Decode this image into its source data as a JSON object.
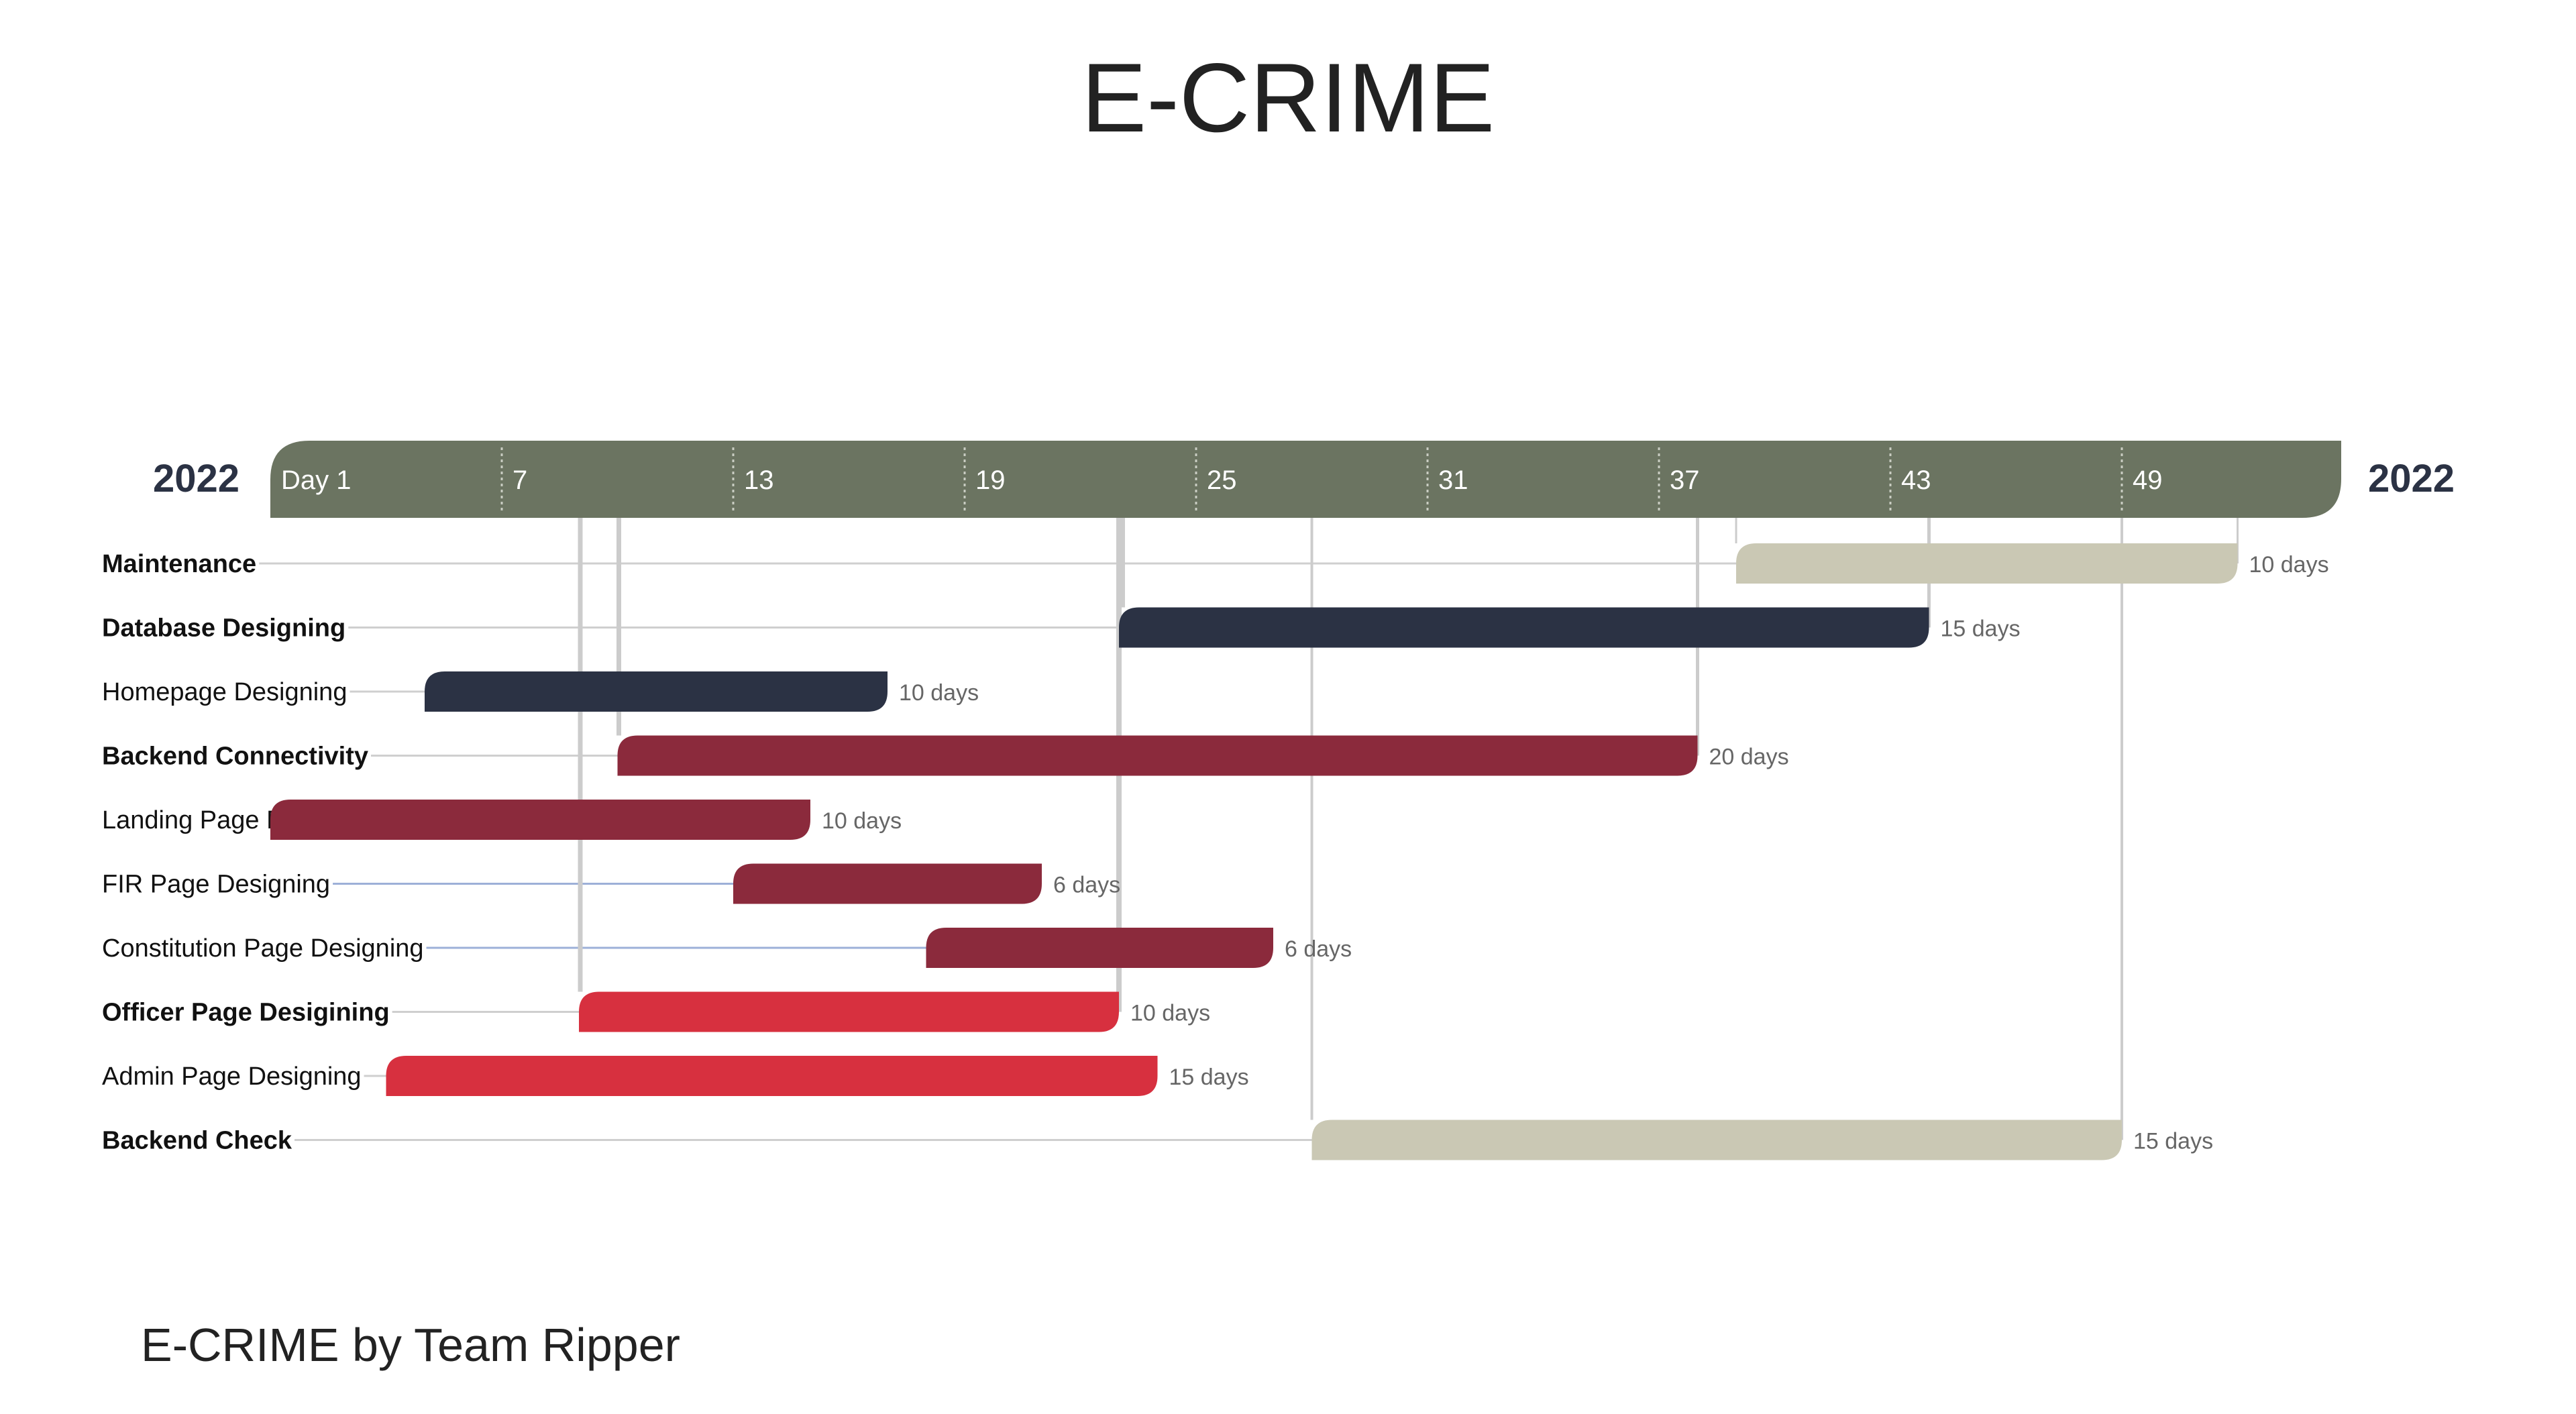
{
  "title": "E-CRIME",
  "footer": "E-CRIME by Team Ripper",
  "chart_data": {
    "type": "gantt",
    "year_left": "2022",
    "year_right": "2022",
    "x_range": [
      1,
      53
    ],
    "ticks": [
      {
        "day": 1,
        "label": "Day 1"
      },
      {
        "day": 7,
        "label": "7"
      },
      {
        "day": 13,
        "label": "13"
      },
      {
        "day": 19,
        "label": "19"
      },
      {
        "day": 25,
        "label": "25"
      },
      {
        "day": 31,
        "label": "31"
      },
      {
        "day": 37,
        "label": "37"
      },
      {
        "day": 43,
        "label": "43"
      },
      {
        "day": 49,
        "label": "49"
      }
    ],
    "tasks": [
      {
        "name": "Maintenance",
        "bold": true,
        "start": 39,
        "duration": 13,
        "duration_label": "10 days",
        "color": "#cac8b4"
      },
      {
        "name": "Database Designing",
        "bold": true,
        "start": 23,
        "duration": 21,
        "duration_label": "15 days",
        "color": "#2b3244"
      },
      {
        "name": "Homepage Designing",
        "bold": false,
        "start": 5,
        "duration": 12,
        "duration_label": "10 days",
        "color": "#2b3244"
      },
      {
        "name": "Backend Connectivity",
        "bold": true,
        "start": 10,
        "duration": 28,
        "duration_label": "20 days",
        "color": "#8b2a3c"
      },
      {
        "name": "Landing Page Designing",
        "bold": false,
        "start": 1,
        "duration": 14,
        "duration_label": "10 days",
        "color": "#8b2a3c"
      },
      {
        "name": "FIR Page Designing",
        "bold": false,
        "start": 13,
        "duration": 8,
        "duration_label": "6 days",
        "color": "#8b2a3c"
      },
      {
        "name": "Constitution Page Designing",
        "bold": false,
        "start": 18,
        "duration": 9,
        "duration_label": "6 days",
        "color": "#8b2a3c"
      },
      {
        "name": "Officer Page Desigining",
        "bold": true,
        "start": 9,
        "duration": 14,
        "duration_label": "10 days",
        "color": "#d7303f"
      },
      {
        "name": "Admin Page Designing",
        "bold": false,
        "start": 4,
        "duration": 20,
        "duration_label": "15 days",
        "color": "#d7303f"
      },
      {
        "name": "Backend Check",
        "bold": true,
        "start": 28,
        "duration": 21,
        "duration_label": "15 days",
        "color": "#cac8b4"
      }
    ],
    "header_color": "#6b7461",
    "dependency_color": "#cccccc"
  }
}
